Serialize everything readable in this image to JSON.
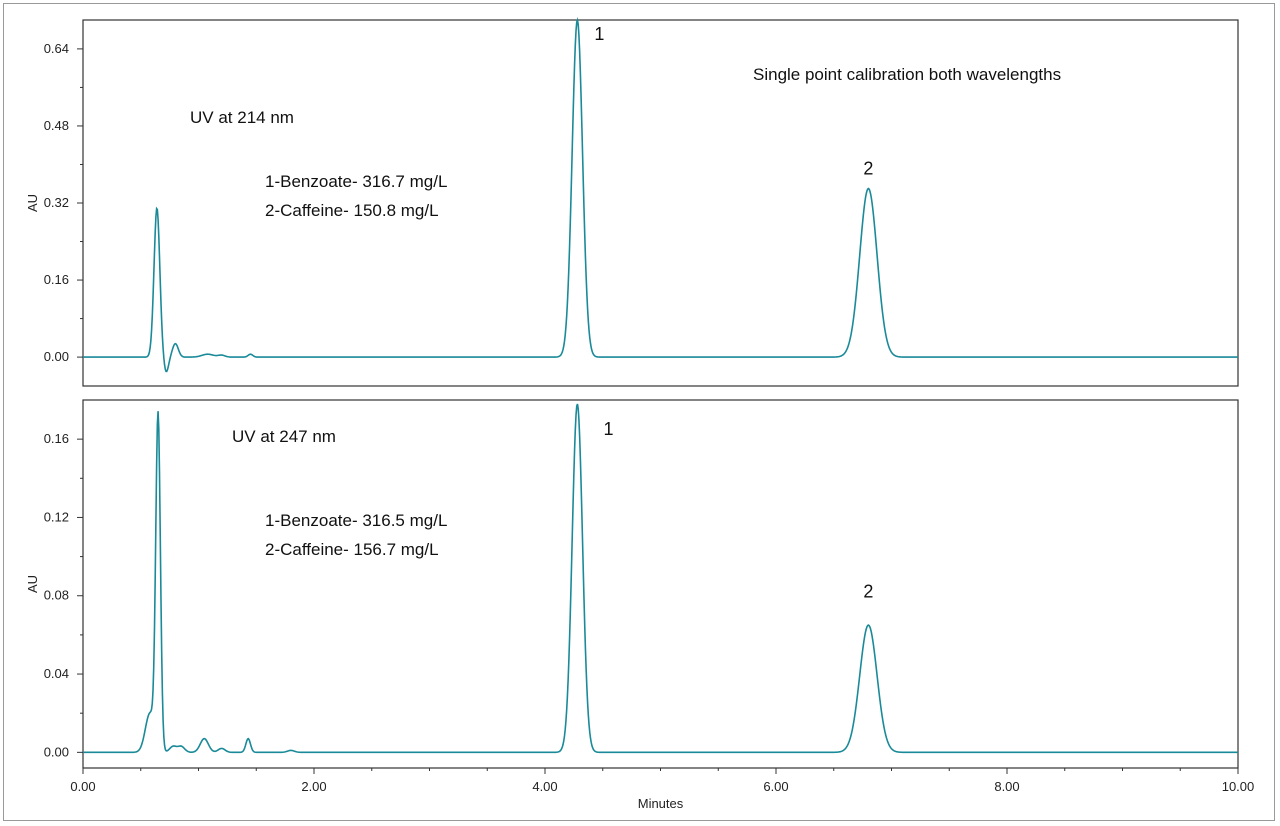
{
  "chart_data": {
    "type": "line",
    "xlabel": "Minutes",
    "x_ticks": [
      "0.00",
      "2.00",
      "4.00",
      "6.00",
      "8.00",
      "10.00"
    ],
    "xlim": [
      0,
      10
    ],
    "line_color": "#1a8a99",
    "panels": [
      {
        "ylabel": "AU",
        "ylim": [
          -0.06,
          0.7
        ],
        "y_ticks": [
          "0.00",
          "0.16",
          "0.32",
          "0.48",
          "0.64"
        ],
        "y_tick_values": [
          0,
          0.16,
          0.32,
          0.48,
          0.64
        ],
        "annotations": [
          "UV at 214 nm",
          "1-Benzoate- 316.7 mg/L",
          "2-Caffeine- 150.8 mg/L",
          "Single point calibration both wavelengths"
        ],
        "peak_labels": [
          {
            "text": "1",
            "x": 4.28,
            "y": 0.7
          },
          {
            "text": "2",
            "x": 6.8,
            "y": 0.35
          }
        ],
        "peaks": [
          {
            "center": 0.64,
            "height": 0.31,
            "width": 0.025
          },
          {
            "center": 0.72,
            "height": -0.032,
            "width": 0.02
          },
          {
            "center": 0.8,
            "height": 0.028,
            "width": 0.025
          },
          {
            "center": 1.08,
            "height": 0.006,
            "width": 0.05
          },
          {
            "center": 1.2,
            "height": 0.004,
            "width": 0.03
          },
          {
            "center": 1.45,
            "height": 0.006,
            "width": 0.02
          },
          {
            "center": 4.28,
            "height": 0.7,
            "width": 0.045
          },
          {
            "center": 6.8,
            "height": 0.35,
            "width": 0.075
          }
        ]
      },
      {
        "ylabel": "AU",
        "ylim": [
          -0.008,
          0.18
        ],
        "y_ticks": [
          "0.00",
          "0.04",
          "0.08",
          "0.12",
          "0.16"
        ],
        "y_tick_values": [
          0,
          0.04,
          0.08,
          0.12,
          0.16
        ],
        "annotations": [
          "UV at 247 nm",
          "1-Benzoate- 316.5 mg/L",
          "2-Caffeine- 156.7 mg/L"
        ],
        "peak_labels": [
          {
            "text": "1",
            "x": 4.55,
            "y": 0.155
          },
          {
            "text": "2",
            "x": 6.8,
            "y": 0.072
          }
        ],
        "peaks": [
          {
            "center": 0.58,
            "height": 0.02,
            "width": 0.04
          },
          {
            "center": 0.65,
            "height": 0.17,
            "width": 0.02
          },
          {
            "center": 0.78,
            "height": 0.003,
            "width": 0.03
          },
          {
            "center": 0.85,
            "height": 0.003,
            "width": 0.03
          },
          {
            "center": 1.05,
            "height": 0.007,
            "width": 0.035
          },
          {
            "center": 1.2,
            "height": 0.002,
            "width": 0.03
          },
          {
            "center": 1.43,
            "height": 0.007,
            "width": 0.02
          },
          {
            "center": 1.8,
            "height": 0.001,
            "width": 0.03
          },
          {
            "center": 4.28,
            "height": 0.178,
            "width": 0.045
          },
          {
            "center": 6.8,
            "height": 0.065,
            "width": 0.075
          }
        ]
      }
    ]
  }
}
